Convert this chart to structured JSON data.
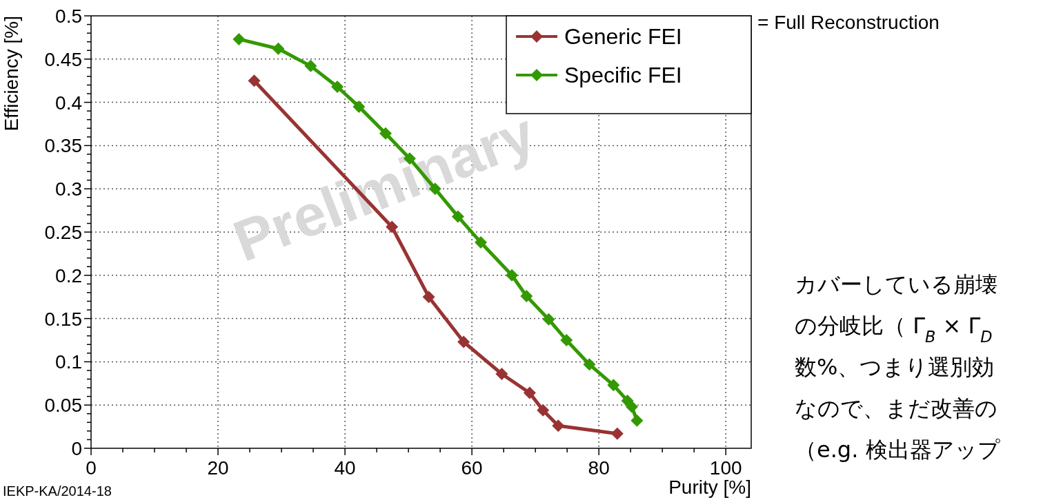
{
  "chart_data": {
    "type": "line",
    "xlabel": "Purity [%]",
    "ylabel": "Efficiency [%]",
    "xlim": [
      0,
      104
    ],
    "xticks": [
      0,
      {
        "value": 5,
        "label": null
      },
      {
        "value": 10,
        "label": null
      },
      {
        "value": 15,
        "label": null
      },
      20,
      {
        "value": 25,
        "label": null
      },
      {
        "value": 30,
        "label": null
      },
      {
        "value": 35,
        "label": null
      },
      40,
      {
        "value": 45,
        "label": null
      },
      {
        "value": 50,
        "label": null
      },
      {
        "value": 55,
        "label": null
      },
      60,
      {
        "value": 65,
        "label": null
      },
      {
        "value": 70,
        "label": null
      },
      {
        "value": 75,
        "label": null
      },
      80,
      {
        "value": 85,
        "label": null
      },
      {
        "value": 90,
        "label": null
      },
      {
        "value": 95,
        "label": null
      },
      100
    ],
    "ylim": [
      0,
      0.5
    ],
    "yticks": [
      0,
      {
        "value": 0.01,
        "label": null
      },
      {
        "value": 0.02,
        "label": null
      },
      {
        "value": 0.03,
        "label": null
      },
      {
        "value": 0.04,
        "label": null
      },
      0.05,
      {
        "value": 0.06,
        "label": null
      },
      {
        "value": 0.07,
        "label": null
      },
      {
        "value": 0.08,
        "label": null
      },
      {
        "value": 0.09,
        "label": null
      },
      0.1,
      {
        "value": 0.11,
        "label": null
      },
      {
        "value": 0.12,
        "label": null
      },
      {
        "value": 0.13,
        "label": null
      },
      {
        "value": 0.14,
        "label": null
      },
      0.15,
      {
        "value": 0.16,
        "label": null
      },
      {
        "value": 0.17,
        "label": null
      },
      {
        "value": 0.18,
        "label": null
      },
      {
        "value": 0.19,
        "label": null
      },
      0.2,
      {
        "value": 0.21,
        "label": null
      },
      {
        "value": 0.22,
        "label": null
      },
      {
        "value": 0.23,
        "label": null
      },
      {
        "value": 0.24,
        "label": null
      },
      0.25,
      {
        "value": 0.26,
        "label": null
      },
      {
        "value": 0.27,
        "label": null
      },
      {
        "value": 0.28,
        "label": null
      },
      {
        "value": 0.29,
        "label": null
      },
      0.3,
      {
        "value": 0.31,
        "label": null
      },
      {
        "value": 0.32,
        "label": null
      },
      {
        "value": 0.33,
        "label": null
      },
      {
        "value": 0.34,
        "label": null
      },
      0.35,
      {
        "value": 0.36,
        "label": null
      },
      {
        "value": 0.37,
        "label": null
      },
      {
        "value": 0.38,
        "label": null
      },
      {
        "value": 0.39,
        "label": null
      },
      0.4,
      {
        "value": 0.41,
        "label": null
      },
      {
        "value": 0.42,
        "label": null
      },
      {
        "value": 0.43,
        "label": null
      },
      {
        "value": 0.44,
        "label": null
      },
      0.45,
      {
        "value": 0.46,
        "label": null
      },
      {
        "value": 0.47,
        "label": null
      },
      {
        "value": 0.48,
        "label": null
      },
      {
        "value": 0.49,
        "label": null
      },
      0.5
    ],
    "grid": true,
    "legend": "top right",
    "marker": "diamond",
    "line_style": "solid",
    "series": [
      {
        "name": "Generic FEI",
        "color": "#993333",
        "x": [
          25.7,
          47.4,
          53.2,
          58.7,
          64.7,
          69.1,
          71.2,
          73.6,
          82.9
        ],
        "values": [
          0.425,
          0.256,
          0.175,
          0.123,
          0.086,
          0.064,
          0.044,
          0.026,
          0.017
        ]
      },
      {
        "name": "Specific FEI",
        "color": "#339900",
        "x": [
          23.3,
          29.5,
          34.6,
          38.8,
          42.2,
          46.4,
          50.2,
          54.2,
          57.8,
          61.4,
          66.3,
          68.6,
          72.1,
          74.9,
          78.5,
          82.3,
          84.5,
          85.2,
          86.0
        ],
        "values": [
          0.473,
          0.462,
          0.442,
          0.418,
          0.395,
          0.364,
          0.335,
          0.3,
          0.268,
          0.238,
          0.2,
          0.176,
          0.149,
          0.125,
          0.097,
          0.073,
          0.055,
          0.048,
          0.032
        ]
      }
    ],
    "annotations": [
      "Preliminary",
      "= Full Reconstruction",
      "IEKP-KA/2014-18",
      "カバーしている崩壊",
      "の分岐比（ Γ$_{B}$ × Γ$_{D}$",
      "数%、つまり選別効",
      "なので、まだ改善の",
      "（e.g. 検出器アップ"
    ]
  }
}
